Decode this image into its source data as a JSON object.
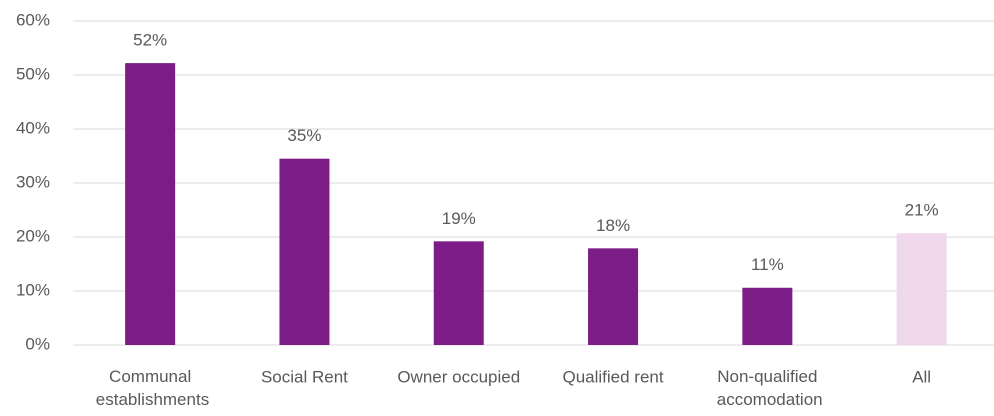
{
  "chart_data": {
    "type": "bar",
    "categories": [
      "Communal establishments",
      "Social Rent",
      "Owner occupied",
      "Qualified rent",
      "Non-qualified accomodation",
      "All"
    ],
    "values": [
      52.2,
      34.5,
      19.2,
      17.9,
      10.6,
      20.7
    ],
    "value_labels": [
      "52%",
      "35%",
      "19%",
      "18%",
      "11%",
      "21%"
    ],
    "colors": [
      "#7b1c87",
      "#7b1c87",
      "#7b1c87",
      "#7b1c87",
      "#7b1c87",
      "#f0d8ec"
    ],
    "ylim": [
      0,
      60
    ],
    "yticks": [
      {
        "value": 0,
        "label": "0%"
      },
      {
        "value": 10,
        "label": "10%"
      },
      {
        "value": 20,
        "label": "20%"
      },
      {
        "value": 30,
        "label": "30%"
      },
      {
        "value": 40,
        "label": "40%"
      },
      {
        "value": 50,
        "label": "50%"
      },
      {
        "value": 60,
        "label": "60%"
      }
    ],
    "grid": true
  }
}
